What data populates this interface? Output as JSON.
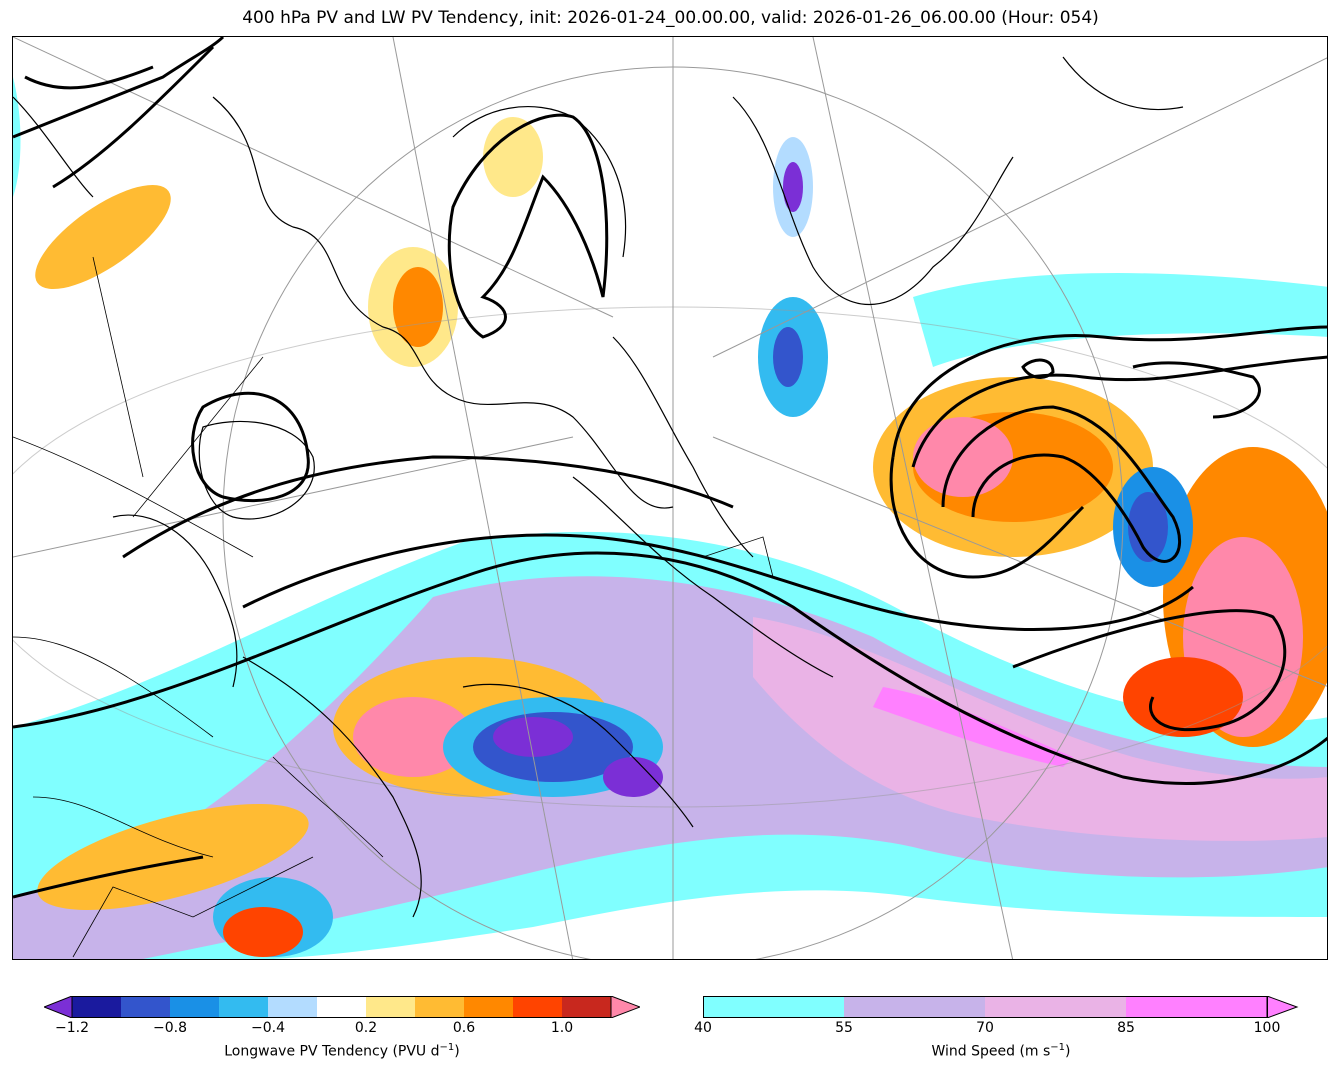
{
  "title": "400 hPa PV and LW PV Tendency, init: 2026-01-24_00.00.00, valid: 2026-01-26_06.00.00 (Hour: 054)",
  "colors": {
    "tend_neg": [
      "#7b2fd6",
      "#1a1a9e",
      "#3355cc",
      "#1a90e6",
      "#33bbf0",
      "#b3dcff"
    ],
    "tend_pos": [
      "#ffe88a",
      "#ffbb33",
      "#ff8800",
      "#ff4400",
      "#c8281e",
      "#ff88aa"
    ],
    "wind": [
      "#80ffff",
      "#c7b3ea",
      "#eab3e6",
      "#ff80ff"
    ],
    "coast": "#000000",
    "pv_contour": "#000000",
    "grid": "#999999"
  },
  "colorbar_tendency": {
    "label_main": "Longwave PV Tendency (PVU d",
    "label_exp": "−1",
    "label_end": ")",
    "ticks": [
      "−1.2",
      "−0.8",
      "−0.4",
      "0.2",
      "0.6",
      "1.0"
    ]
  },
  "colorbar_wind": {
    "label_main": "Wind Speed (m s",
    "label_exp": "−1",
    "label_end": ")",
    "ticks": [
      "40",
      "55",
      "70",
      "85",
      "100"
    ]
  }
}
